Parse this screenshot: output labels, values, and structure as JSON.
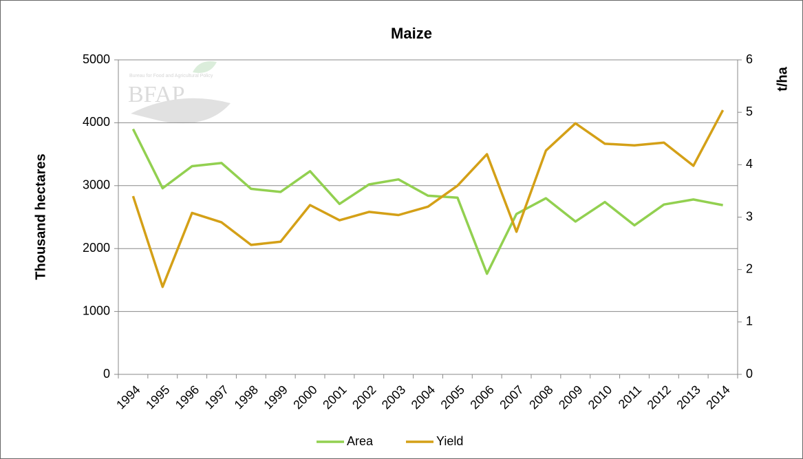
{
  "chart_data": {
    "type": "line",
    "title": "Maize",
    "y_label": "Thousand hectares",
    "y2_label": "t/ha",
    "logo": {
      "text": "Bureau for Food and Agricultural Policy",
      "name": "BFAP"
    },
    "categories": [
      "1994",
      "1995",
      "1996",
      "1997",
      "1998",
      "1999",
      "2000",
      "2001",
      "2002",
      "2003",
      "2004",
      "2005",
      "2006",
      "2007",
      "2008",
      "2009",
      "2010",
      "2011",
      "2012",
      "2013",
      "2014"
    ],
    "series": [
      {
        "name": "Area",
        "color": "#92d050",
        "axis": "y",
        "values": [
          3900,
          2960,
          3310,
          3360,
          2950,
          2900,
          3230,
          2710,
          3020,
          3100,
          2840,
          2810,
          1600,
          2550,
          2800,
          2430,
          2740,
          2370,
          2700,
          2780,
          2690
        ]
      },
      {
        "name": "Yield",
        "color": "#d4a017",
        "axis": "y2",
        "values": [
          3.4,
          1.67,
          3.08,
          2.9,
          2.47,
          2.53,
          3.23,
          2.94,
          3.1,
          3.04,
          3.2,
          3.6,
          4.2,
          2.72,
          4.27,
          4.79,
          4.4,
          4.37,
          4.42,
          3.98,
          5.04
        ]
      }
    ],
    "ylim": [
      0,
      5000
    ],
    "yticks": [
      0,
      1000,
      2000,
      3000,
      4000,
      5000
    ],
    "y2lim": [
      0,
      6
    ],
    "y2ticks": [
      0,
      1,
      2,
      3,
      4,
      5,
      6
    ],
    "grid": true,
    "legend": "bottom"
  }
}
